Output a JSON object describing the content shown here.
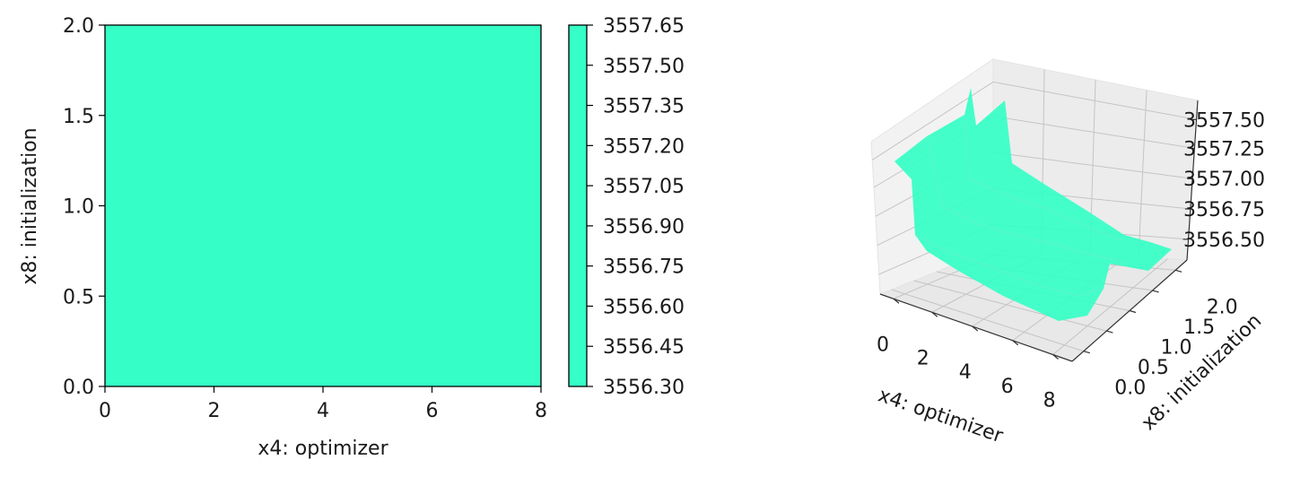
{
  "chart_data": [
    {
      "type": "heatmap",
      "xlabel": "x4: optimizer",
      "ylabel": "x8: initialization",
      "xlim": [
        0,
        8
      ],
      "ylim": [
        0,
        2
      ],
      "xticks": [
        "0",
        "2",
        "4",
        "6",
        "8"
      ],
      "yticks": [
        "0.0",
        "0.5",
        "1.0",
        "1.5",
        "2.0"
      ],
      "fill_color": "#35ffc6",
      "colorbar": {
        "range": [
          3556.3,
          3557.65
        ],
        "ticks": [
          "3556.30",
          "3556.45",
          "3556.60",
          "3556.75",
          "3556.90",
          "3557.05",
          "3557.20",
          "3557.35",
          "3557.50",
          "3557.65"
        ]
      }
    },
    {
      "type": "surface",
      "xlabel": "x4: optimizer",
      "ylabel": "x8: initialization",
      "xticks": [
        "0",
        "2",
        "4",
        "6",
        "8"
      ],
      "yticks": [
        "0.0",
        "0.5",
        "1.0",
        "1.5",
        "2.0"
      ],
      "zticks": [
        "3556.50",
        "3556.75",
        "3557.00",
        "3557.25",
        "3557.50"
      ],
      "surface_color": "#35ffc6"
    }
  ]
}
